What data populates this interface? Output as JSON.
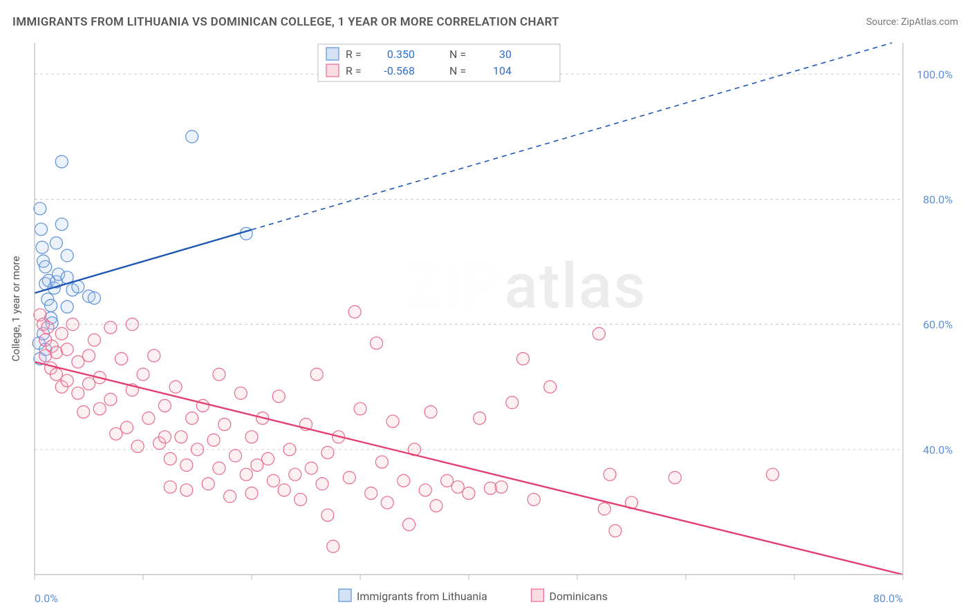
{
  "title": "IMMIGRANTS FROM LITHUANIA VS DOMINICAN COLLEGE, 1 YEAR OR MORE CORRELATION CHART",
  "source_prefix": "Source: ",
  "source_link": "ZipAtlas.com",
  "y_axis_label": "College, 1 year or more",
  "watermark_a": "ZIP",
  "watermark_b": "atlas",
  "chart": {
    "type": "scatter",
    "background_color": "#ffffff",
    "grid_color": "#cccccc",
    "axis_color": "#bbbbbb",
    "xlim": [
      0,
      80
    ],
    "ylim": [
      20,
      105
    ],
    "x_ticks": [
      0,
      80
    ],
    "x_tick_labels": [
      "0.0%",
      "80.0%"
    ],
    "x_minor_ticks": [
      10,
      20,
      30,
      40,
      50,
      60,
      70
    ],
    "y_ticks": [
      40,
      60,
      80,
      100
    ],
    "y_tick_labels": [
      "40.0%",
      "60.0%",
      "80.0%",
      "100.0%"
    ],
    "marker_radius": 9,
    "marker_stroke_width": 1.2,
    "marker_fill_opacity": 0.22,
    "series": [
      {
        "name": "Immigrants from Lithuania",
        "color_stroke": "#5b8fd6",
        "color_fill": "#a8c6ec",
        "color_line": "#1f56b5",
        "R": "0.350",
        "N": "30",
        "trend": {
          "x1": 0,
          "y1": 65,
          "x2": 79,
          "y2": 105,
          "solid_until_x": 20
        },
        "points": [
          [
            0.5,
            78.5
          ],
          [
            0.6,
            75.2
          ],
          [
            0.7,
            72.3
          ],
          [
            0.8,
            70.1
          ],
          [
            1.0,
            69.2
          ],
          [
            1.0,
            66.5
          ],
          [
            1.2,
            64.0
          ],
          [
            1.3,
            67.0
          ],
          [
            1.5,
            63.0
          ],
          [
            1.5,
            61.0
          ],
          [
            1.6,
            60.2
          ],
          [
            1.8,
            65.8
          ],
          [
            2.0,
            66.8
          ],
          [
            2.2,
            68.0
          ],
          [
            2.5,
            76.0
          ],
          [
            2.5,
            86.0
          ],
          [
            3.0,
            67.5
          ],
          [
            3.0,
            62.8
          ],
          [
            3.0,
            71.0
          ],
          [
            3.5,
            65.5
          ],
          [
            4.0,
            66.0
          ],
          [
            5.0,
            64.5
          ],
          [
            5.5,
            64.2
          ],
          [
            0.4,
            57.0
          ],
          [
            0.5,
            54.5
          ],
          [
            0.8,
            58.5
          ],
          [
            1.0,
            56.0
          ],
          [
            2.0,
            73.0
          ],
          [
            14.5,
            90.0
          ],
          [
            19.5,
            74.5
          ]
        ]
      },
      {
        "name": "Dominicans",
        "color_stroke": "#e86a8c",
        "color_fill": "#f6b9c9",
        "color_line": "#e34072",
        "R": "-0.568",
        "N": "104",
        "trend": {
          "x1": 0,
          "y1": 54,
          "x2": 80,
          "y2": 20,
          "solid_until_x": 80
        },
        "points": [
          [
            0.5,
            61.5
          ],
          [
            0.8,
            60.0
          ],
          [
            1.0,
            57.5
          ],
          [
            1.0,
            55.0
          ],
          [
            1.2,
            59.5
          ],
          [
            1.5,
            53.0
          ],
          [
            1.6,
            56.5
          ],
          [
            2.0,
            52.0
          ],
          [
            2.0,
            55.5
          ],
          [
            2.5,
            58.5
          ],
          [
            2.5,
            50.0
          ],
          [
            3.0,
            56.0
          ],
          [
            3.0,
            51.0
          ],
          [
            3.5,
            60.0
          ],
          [
            4.0,
            54.0
          ],
          [
            4.0,
            49.0
          ],
          [
            4.5,
            46.0
          ],
          [
            5.0,
            55.0
          ],
          [
            5.0,
            50.5
          ],
          [
            5.5,
            57.5
          ],
          [
            6.0,
            51.5
          ],
          [
            6.0,
            46.5
          ],
          [
            7.0,
            59.5
          ],
          [
            7.0,
            48.0
          ],
          [
            7.5,
            42.5
          ],
          [
            8.0,
            54.5
          ],
          [
            8.5,
            43.5
          ],
          [
            9.0,
            60.0
          ],
          [
            9.0,
            49.5
          ],
          [
            9.5,
            40.5
          ],
          [
            10.0,
            52.0
          ],
          [
            10.5,
            45.0
          ],
          [
            11.0,
            55.0
          ],
          [
            11.5,
            41.0
          ],
          [
            12.0,
            47.0
          ],
          [
            12.0,
            42.0
          ],
          [
            12.5,
            38.5
          ],
          [
            12.5,
            34.0
          ],
          [
            13.0,
            50.0
          ],
          [
            13.5,
            42.0
          ],
          [
            14.0,
            37.5
          ],
          [
            14.0,
            33.5
          ],
          [
            14.5,
            45.0
          ],
          [
            15.0,
            40.0
          ],
          [
            15.5,
            47.0
          ],
          [
            16.0,
            34.5
          ],
          [
            16.5,
            41.5
          ],
          [
            17.0,
            52.0
          ],
          [
            17.0,
            37.0
          ],
          [
            17.5,
            44.0
          ],
          [
            18.0,
            32.5
          ],
          [
            18.5,
            39.0
          ],
          [
            19.0,
            49.0
          ],
          [
            19.5,
            36.0
          ],
          [
            20.0,
            42.0
          ],
          [
            20.0,
            33.0
          ],
          [
            20.5,
            37.5
          ],
          [
            21.0,
            45.0
          ],
          [
            21.5,
            38.5
          ],
          [
            22.0,
            35.0
          ],
          [
            22.5,
            48.5
          ],
          [
            23.0,
            33.5
          ],
          [
            23.5,
            40.0
          ],
          [
            24.0,
            36.0
          ],
          [
            24.5,
            32.0
          ],
          [
            25.0,
            44.0
          ],
          [
            25.5,
            37.0
          ],
          [
            26.0,
            52.0
          ],
          [
            26.5,
            34.5
          ],
          [
            27.0,
            39.5
          ],
          [
            27.0,
            29.5
          ],
          [
            27.5,
            24.5
          ],
          [
            28.0,
            42.0
          ],
          [
            29.0,
            35.5
          ],
          [
            29.5,
            62.0
          ],
          [
            30.0,
            46.5
          ],
          [
            31.0,
            33.0
          ],
          [
            31.5,
            57.0
          ],
          [
            32.0,
            38.0
          ],
          [
            32.5,
            31.5
          ],
          [
            33.0,
            44.5
          ],
          [
            34.0,
            35.0
          ],
          [
            34.5,
            28.0
          ],
          [
            35.0,
            40.0
          ],
          [
            36.0,
            33.5
          ],
          [
            36.5,
            46.0
          ],
          [
            37.0,
            31.0
          ],
          [
            38.0,
            35.0
          ],
          [
            39.0,
            34.0
          ],
          [
            40.0,
            33.0
          ],
          [
            41.0,
            45.0
          ],
          [
            42.0,
            33.8
          ],
          [
            43.0,
            34.0
          ],
          [
            44.0,
            47.5
          ],
          [
            45.0,
            54.5
          ],
          [
            46.0,
            32.0
          ],
          [
            47.5,
            50.0
          ],
          [
            52.0,
            58.5
          ],
          [
            52.5,
            30.5
          ],
          [
            53.0,
            36.0
          ],
          [
            53.5,
            27.0
          ],
          [
            55.0,
            31.5
          ],
          [
            59.0,
            35.5
          ],
          [
            68.0,
            36.0
          ]
        ]
      }
    ]
  },
  "legend_bottom": {
    "items": [
      {
        "label": "Immigrants from Lithuania",
        "fill": "#a8c6ec",
        "stroke": "#5b8fd6"
      },
      {
        "label": "Dominicans",
        "fill": "#f6b9c9",
        "stroke": "#e86a8c"
      }
    ]
  },
  "legend_top_labels": {
    "R": "R =",
    "N": "N ="
  },
  "colors": {
    "value_text": "#2f6fd0",
    "label_text": "#555555"
  }
}
